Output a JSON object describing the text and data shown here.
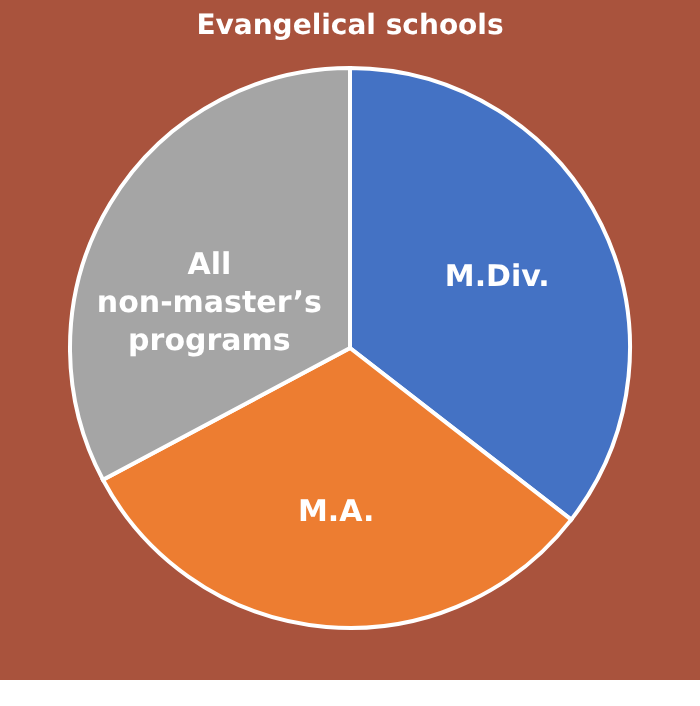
{
  "chart_data": {
    "type": "pie",
    "title": "Evangelical schools",
    "categories": [
      "M.Div.",
      "M.A.",
      "All non-master’s programs"
    ],
    "values": [
      35.5,
      31.7,
      32.8
    ],
    "colors": [
      "#4472c4",
      "#ed7d31",
      "#a5a5a5"
    ],
    "legend": false
  }
}
